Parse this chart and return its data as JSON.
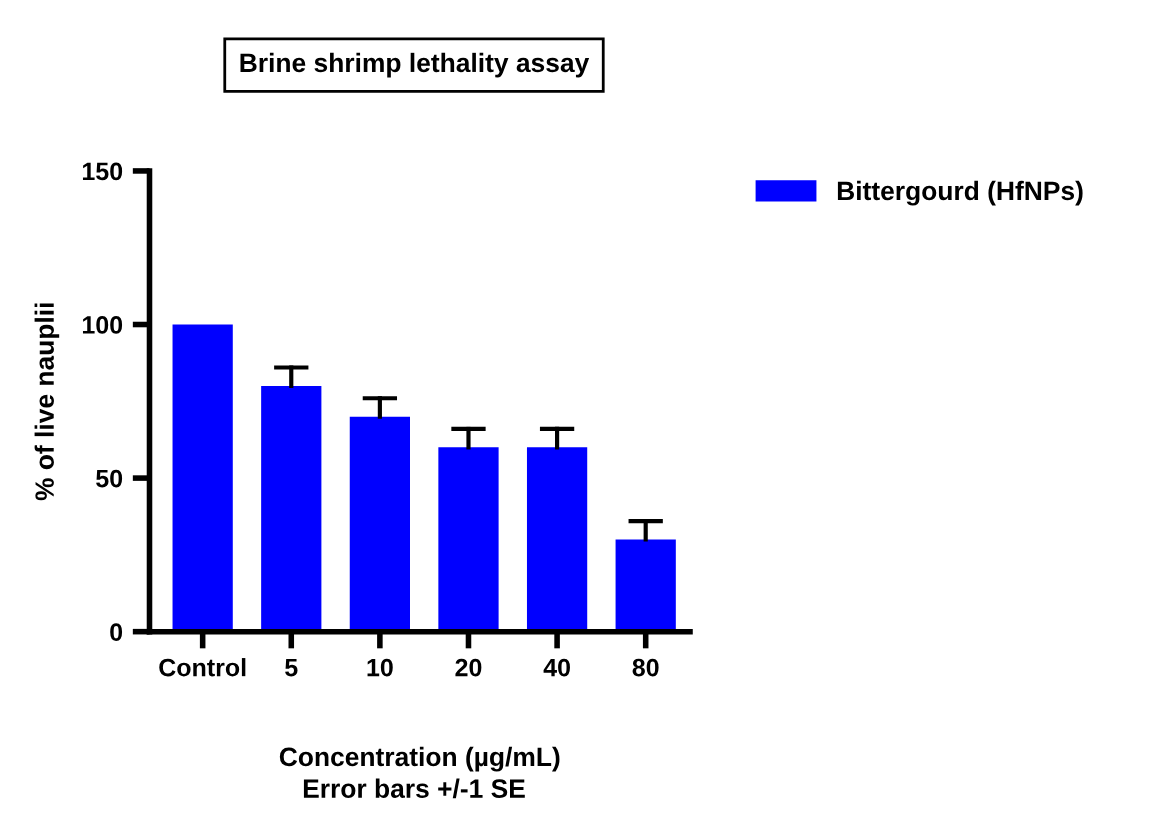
{
  "chart_data": {
    "type": "bar",
    "title": "Brine shrimp lethality assay",
    "xlabel": "Concentration (µg/mL)",
    "ylabel": "% of live nauplii",
    "annotations": [
      "Error bars +/-1 SE"
    ],
    "categories": [
      "Control",
      "5",
      "10",
      "20",
      "40",
      "80"
    ],
    "series": [
      {
        "name": "Bittergourd (HfNPs)",
        "color": "#0000ff",
        "values": [
          100,
          80,
          70,
          60,
          60,
          30
        ],
        "errors": [
          null,
          [
            80,
            86
          ],
          [
            70,
            76
          ],
          [
            60,
            66
          ],
          [
            60,
            66
          ],
          [
            30,
            36
          ]
        ]
      }
    ],
    "ylim": [
      0,
      150
    ],
    "yticks": [
      0,
      50,
      100,
      150
    ],
    "grid": false,
    "legend": "top right"
  }
}
